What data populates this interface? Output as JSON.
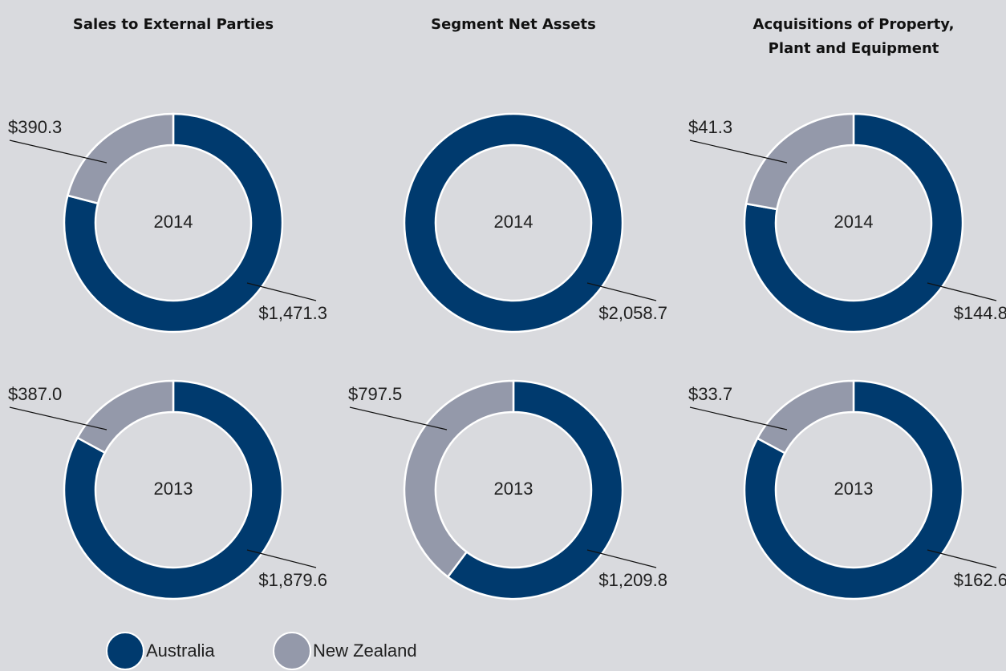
{
  "legend": {
    "names": [
      "Australia",
      "New Zealand"
    ],
    "colors": [
      "#003a6e",
      "#9499aa"
    ]
  },
  "chart_data": [
    {
      "type": "donut",
      "title": "Sales to External Parties",
      "center_label": "2014",
      "values": [
        1471.3,
        390.3
      ],
      "value_labels": [
        "$1,471.3",
        "$390.3"
      ]
    },
    {
      "type": "donut",
      "title": "Segment Net Assets",
      "center_label": "2014",
      "values": [
        2058.7
      ],
      "value_labels": [
        "$2,058.7"
      ]
    },
    {
      "type": "donut",
      "title": "Acquisitions of Property, Plant and Equipment",
      "center_label": "2014",
      "values": [
        144.8,
        41.3
      ],
      "value_labels": [
        "$144.8",
        "$41.3"
      ]
    },
    {
      "type": "donut",
      "center_label": "2013",
      "values": [
        1879.6,
        387.0
      ],
      "value_labels": [
        "$1,879.6",
        "$387.0"
      ]
    },
    {
      "type": "donut",
      "center_label": "2013",
      "values": [
        1209.8,
        797.5
      ],
      "value_labels": [
        "$1,209.8",
        "$797.5"
      ]
    },
    {
      "type": "donut",
      "center_label": "2013",
      "values": [
        162.6,
        33.7
      ],
      "value_labels": [
        "$162.6",
        "$33.7"
      ]
    }
  ]
}
